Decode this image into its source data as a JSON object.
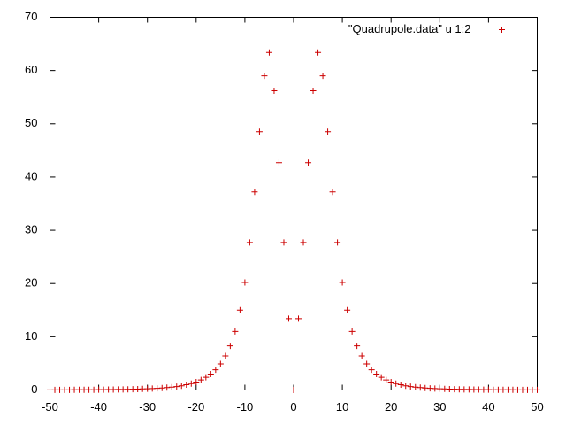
{
  "chart_data": {
    "type": "scatter",
    "series": [
      {
        "name": "\"Quadrupole.data\" u 1:2",
        "color": "#cc0000",
        "x": [
          -50,
          -49,
          -48,
          -47,
          -46,
          -45,
          -44,
          -43,
          -42,
          -41,
          -40,
          -39,
          -38,
          -37,
          -36,
          -35,
          -34,
          -33,
          -32,
          -31,
          -30,
          -29,
          -28,
          -27,
          -26,
          -25,
          -24,
          -23,
          -22,
          -21,
          -20,
          -19,
          -18,
          -17,
          -16,
          -15,
          -14,
          -13,
          -12,
          -11,
          -10,
          -9,
          -8,
          -7,
          -6,
          -5,
          -4,
          -3,
          -2,
          -1,
          0,
          1,
          2,
          3,
          4,
          5,
          6,
          7,
          8,
          9,
          10,
          11,
          12,
          13,
          14,
          15,
          16,
          17,
          18,
          19,
          20,
          21,
          22,
          23,
          24,
          25,
          26,
          27,
          28,
          29,
          30,
          31,
          32,
          33,
          34,
          35,
          36,
          37,
          38,
          39,
          40,
          41,
          42,
          43,
          44,
          45,
          46,
          47,
          48,
          49,
          50
        ],
        "values": [
          0.02,
          0.03,
          0.03,
          0.03,
          0.03,
          0.04,
          0.04,
          0.04,
          0.05,
          0.05,
          0.06,
          0.07,
          0.08,
          0.09,
          0.1,
          0.11,
          0.13,
          0.15,
          0.17,
          0.2,
          0.23,
          0.27,
          0.32,
          0.38,
          0.45,
          0.55,
          0.65,
          0.8,
          1.0,
          1.2,
          1.5,
          1.9,
          2.4,
          3.0,
          3.8,
          4.9,
          6.4,
          8.3,
          11,
          15,
          20.2,
          27.7,
          37.2,
          48.5,
          59,
          63.4,
          56.2,
          42.7,
          27.7,
          13.4,
          0,
          13.4,
          27.7,
          42.7,
          56.2,
          63.4,
          59,
          48.5,
          37.2,
          27.7,
          20.2,
          15,
          11,
          8.3,
          6.4,
          4.9,
          3.8,
          3.0,
          2.4,
          1.9,
          1.5,
          1.2,
          1.0,
          0.8,
          0.65,
          0.55,
          0.45,
          0.38,
          0.32,
          0.27,
          0.23,
          0.2,
          0.17,
          0.15,
          0.13,
          0.11,
          0.1,
          0.09,
          0.08,
          0.07,
          0.06,
          0.05,
          0.05,
          0.04,
          0.04,
          0.04,
          0.03,
          0.03,
          0.03,
          0.03,
          0.02
        ]
      }
    ],
    "xlim": [
      -50,
      50
    ],
    "xticks": [
      -50,
      -40,
      -30,
      -20,
      -10,
      0,
      10,
      20,
      30,
      40,
      50
    ],
    "ylim": [
      0,
      70
    ],
    "yticks": [
      0,
      10,
      20,
      30,
      40,
      50,
      60,
      70
    ],
    "legend": "top-right"
  }
}
